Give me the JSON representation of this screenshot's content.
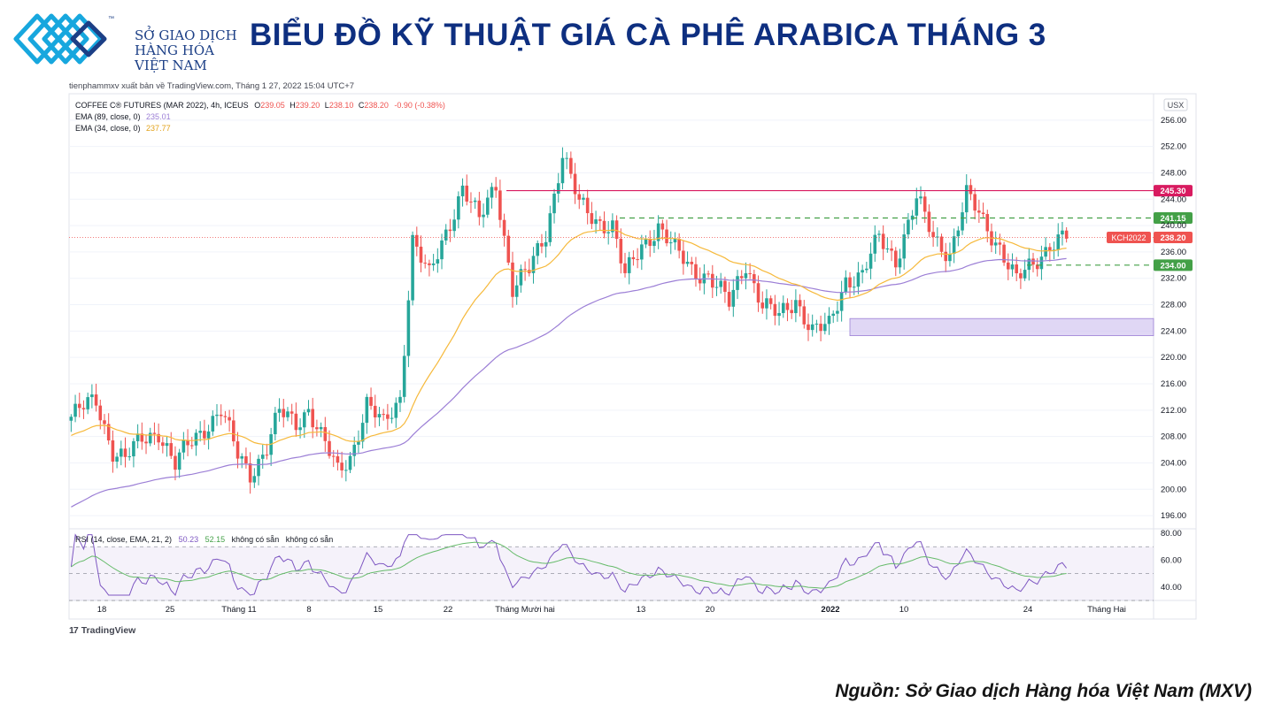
{
  "header": {
    "logo_lines": [
      "SỞ GIAO DỊCH",
      "HÀNG HÓA",
      "VIỆT NAM"
    ],
    "logo_tm": "™",
    "title": "BIỂU ĐỒ KỸ THUẬT GIÁ CÀ PHÊ ARABICA THÁNG 3"
  },
  "published": "tienphammxv xuất bản về TradingView.com, Tháng 1 27, 2022 15:04 UTC+7",
  "footer": {
    "tradingview": "TradingView",
    "source": "Nguồn: Sở Giao dịch Hàng hóa Việt Nam (MXV)"
  },
  "colors": {
    "up": "#26a69a",
    "down": "#ef5350",
    "ema89": "#9c7fd6",
    "ema34": "#f6b93b",
    "resistance": "#d81b60",
    "support": "#43a047",
    "zone": "#d6c9f2"
  },
  "chart_data": [
    {
      "type": "candlestick",
      "symbol_line": "COFFEE C® FUTURES (MAR 2022), 4h, ICEUS",
      "ohlc_labels": [
        {
          "key": "O",
          "value": "239.05"
        },
        {
          "key": "H",
          "value": "239.20"
        },
        {
          "key": "L",
          "value": "238.10"
        },
        {
          "key": "C",
          "value": "238.20"
        },
        {
          "key": "",
          "value": "-0.90 (-0.38%)"
        }
      ],
      "indicators": [
        {
          "label": "EMA (89, close, 0)",
          "value": "235.01",
          "color": "#9c7fd6"
        },
        {
          "label": "EMA (34, close, 0)",
          "value": "237.77",
          "color": "#f6b93b"
        }
      ],
      "currency": "USX",
      "ylim": [
        194,
        260
      ],
      "y_ticks": [
        "256.00",
        "252.00",
        "248.00",
        "244.00",
        "240.00",
        "236.00",
        "232.00",
        "228.00",
        "224.00",
        "220.00",
        "216.00",
        "212.00",
        "208.00",
        "204.00",
        "200.00",
        "196.00"
      ],
      "x_labels": [
        "18",
        "25",
        "Tháng 11",
        "8",
        "15",
        "22",
        "Tháng Mười hai",
        "13",
        "20",
        "2022",
        "10",
        "24",
        "Tháng Hai"
      ],
      "levels": [
        {
          "price": 245.3,
          "label": "245.30",
          "style": "solid",
          "color": "#d81b60"
        },
        {
          "price": 241.15,
          "label": "241.15",
          "style": "dashed",
          "color": "#43a047"
        },
        {
          "price": 234.0,
          "label": "234.00",
          "style": "dashed",
          "color": "#43a047"
        }
      ],
      "last_price": {
        "label": "KCH2022",
        "value": "238.20"
      },
      "support_zone": [
        223.3,
        225.9
      ],
      "close_path": [
        [
          0,
          211
        ],
        [
          6,
          213.5
        ],
        [
          10,
          206
        ],
        [
          13,
          204.5
        ],
        [
          17,
          207.5
        ],
        [
          21,
          209
        ],
        [
          25,
          203.5
        ],
        [
          28,
          206.5
        ],
        [
          32,
          209.5
        ],
        [
          36,
          212
        ],
        [
          40,
          205
        ],
        [
          43,
          202.5
        ],
        [
          47,
          206.5
        ],
        [
          50,
          211.5
        ],
        [
          54,
          210
        ],
        [
          57,
          212.5
        ],
        [
          60,
          208
        ],
        [
          64,
          202.5
        ],
        [
          67,
          205
        ],
        [
          71,
          213
        ],
        [
          75,
          209.5
        ],
        [
          79,
          214
        ],
        [
          82,
          238
        ],
        [
          86,
          232
        ],
        [
          90,
          239
        ],
        [
          94,
          246
        ],
        [
          98,
          240.5
        ],
        [
          102,
          246.5
        ],
        [
          106,
          230.5
        ],
        [
          110,
          233
        ],
        [
          114,
          239
        ],
        [
          118,
          251
        ],
        [
          122,
          243
        ],
        [
          126,
          241
        ],
        [
          130,
          240
        ],
        [
          133,
          232
        ],
        [
          137,
          237
        ],
        [
          141,
          240
        ],
        [
          145,
          236
        ],
        [
          149,
          233.5
        ],
        [
          153,
          232.5
        ],
        [
          158,
          228
        ],
        [
          162,
          234.5
        ],
        [
          166,
          228
        ],
        [
          170,
          226
        ],
        [
          174,
          229
        ],
        [
          178,
          224
        ],
        [
          182,
          224.5
        ],
        [
          186,
          232
        ],
        [
          190,
          232.5
        ],
        [
          194,
          238
        ],
        [
          198,
          235
        ],
        [
          203,
          244
        ],
        [
          207,
          238
        ],
        [
          211,
          236
        ],
        [
          215,
          244.5
        ],
        [
          219,
          240.5
        ],
        [
          223,
          237
        ],
        [
          227,
          231.5
        ],
        [
          231,
          234
        ],
        [
          235,
          237.5
        ],
        [
          238.2,
          238.2
        ]
      ]
    },
    {
      "type": "line",
      "title": "RSI (14, close, EMA, 21, 2)",
      "values_text": [
        "50.23",
        "52.15"
      ],
      "na_text": [
        "không có sẵn",
        "không có sẵn"
      ],
      "ylim": [
        32,
        82
      ],
      "y_ticks": [
        "80.00",
        "60.00",
        "40.00"
      ],
      "band": [
        30,
        70
      ]
    }
  ]
}
